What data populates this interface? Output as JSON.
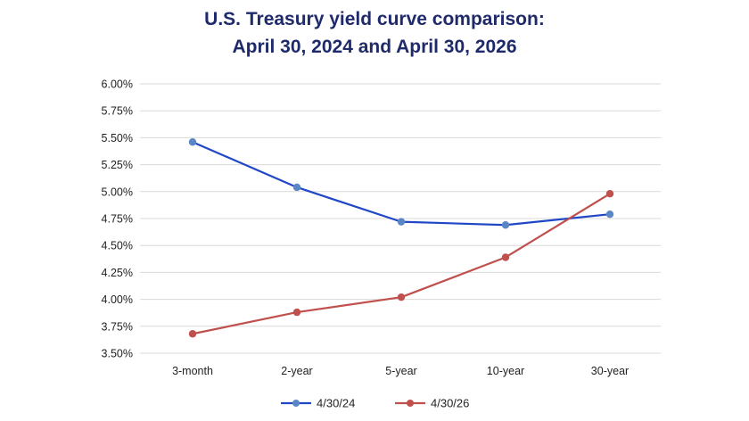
{
  "chart_data": {
    "type": "line",
    "title_line1": "U.S. Treasury yield curve comparison:",
    "title_line2": "April 30, 2024 and April 30, 2026",
    "categories": [
      "3-month",
      "2-year",
      "5-year",
      "10-year",
      "30-year"
    ],
    "y_ticks": [
      "6.00%",
      "5.75%",
      "5.50%",
      "5.25%",
      "5.00%",
      "4.75%",
      "4.50%",
      "4.25%",
      "4.00%",
      "3.75%",
      "3.50%"
    ],
    "ylim": [
      3.5,
      6.0
    ],
    "grid": true,
    "legend_position": "bottom",
    "series": [
      {
        "name": "4/30/24",
        "color": "#1f47c6",
        "marker_color": "#5b86c6",
        "values": [
          5.46,
          5.04,
          4.72,
          4.69,
          4.79
        ]
      },
      {
        "name": "4/30/26",
        "color": "#c0504d",
        "marker_color": "#c0504d",
        "values": [
          3.68,
          3.88,
          4.02,
          4.39,
          4.98
        ]
      }
    ]
  }
}
